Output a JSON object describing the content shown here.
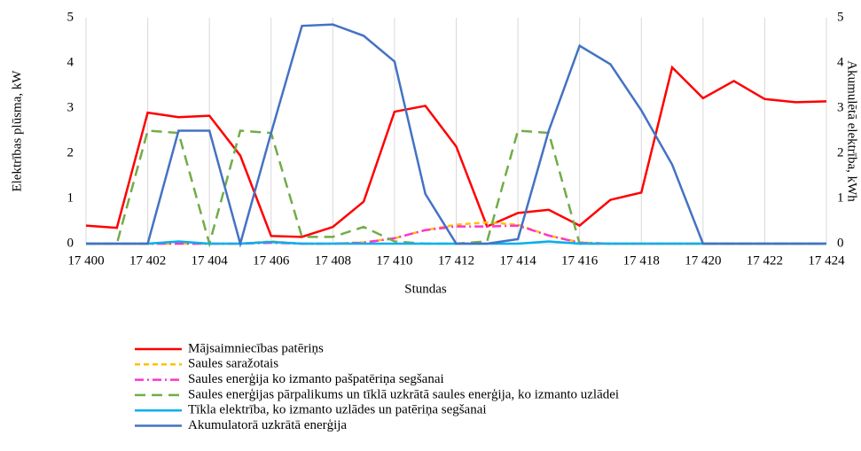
{
  "chart_data": {
    "type": "line",
    "x": [
      17400,
      17401,
      17402,
      17403,
      17404,
      17405,
      17406,
      17407,
      17408,
      17409,
      17410,
      17411,
      17412,
      17413,
      17414,
      17415,
      17416,
      17417,
      17418,
      17419,
      17420,
      17421,
      17422,
      17423,
      17424
    ],
    "series": [
      {
        "name": "Mājsaimniecības patēriņs",
        "color": "#ff0000",
        "dash": "solid",
        "values": [
          0.4,
          0.35,
          2.9,
          2.8,
          2.83,
          1.95,
          0.17,
          0.15,
          0.37,
          0.93,
          2.92,
          3.05,
          2.15,
          0.38,
          0.68,
          0.75,
          0.4,
          0.97,
          1.13,
          3.9,
          3.22,
          3.6,
          3.2,
          3.13,
          3.15
        ]
      },
      {
        "name": "Saules saražotais",
        "color": "#ffc000",
        "dash": "dashed",
        "values": [
          0,
          0,
          0,
          0,
          0,
          0,
          0.05,
          0,
          0,
          0.03,
          0.12,
          0.3,
          0.42,
          0.47,
          0.42,
          0.18,
          0.03,
          0,
          0,
          0,
          0,
          0,
          0,
          0,
          0
        ]
      },
      {
        "name": "Saules enerģija ko izmanto pašpatēriņa segšanai",
        "color": "#ff33cc",
        "dash": "dashdot",
        "values": [
          0,
          0,
          0,
          0,
          0,
          0,
          0.02,
          0,
          0,
          0.02,
          0.12,
          0.3,
          0.38,
          0.38,
          0.4,
          0.18,
          0.02,
          0,
          0,
          0,
          0,
          0,
          0,
          0,
          0
        ]
      },
      {
        "name": "Saules enerģijas pārpalikums un tīklā uzkrātā saules enerģija, ko izmanto uzlādei",
        "color": "#70ad47",
        "dash": "longdash",
        "values": [
          0,
          0,
          2.5,
          2.45,
          0,
          2.5,
          2.45,
          0.15,
          0.15,
          0.37,
          0.05,
          0,
          0,
          0.05,
          2.5,
          2.45,
          0,
          0,
          0,
          0,
          0,
          0,
          0,
          0,
          0
        ]
      },
      {
        "name": "Tīkla elektrība, ko izmanto uzlādes un patēriņa segšanai",
        "color": "#00b0f0",
        "dash": "solid",
        "values": [
          0,
          0,
          0,
          0.05,
          0,
          0,
          0.04,
          0,
          0,
          0,
          0,
          0,
          0,
          0,
          0,
          0.05,
          0,
          0,
          0,
          0,
          0,
          0,
          0,
          0,
          0
        ]
      },
      {
        "name": "Akumulatorā uzkrātā enerģija",
        "color": "#4472c4",
        "dash": "solid",
        "axis": "y2",
        "values": [
          0,
          0,
          0,
          2.5,
          2.5,
          0,
          2.45,
          4.82,
          4.85,
          4.6,
          4.03,
          1.1,
          0,
          0,
          0.1,
          2.5,
          4.38,
          3.97,
          2.95,
          1.75,
          0,
          0,
          0,
          0,
          0
        ]
      }
    ],
    "x_label": "Stundas",
    "y_label": "Elektrības plūsma, kW",
    "y2_label": "Akumulētā elektrība, kWh",
    "xlim": [
      17400,
      17424
    ],
    "xticks": [
      {
        "value": 17400,
        "label": "17 400"
      },
      {
        "value": 17402,
        "label": "17 402"
      },
      {
        "value": 17404,
        "label": "17 404"
      },
      {
        "value": 17406,
        "label": "17 406"
      },
      {
        "value": 17408,
        "label": "17 408"
      },
      {
        "value": 17410,
        "label": "17 410"
      },
      {
        "value": 17412,
        "label": "17 412"
      },
      {
        "value": 17414,
        "label": "17 414"
      },
      {
        "value": 17416,
        "label": "17 416"
      },
      {
        "value": 17418,
        "label": "17 418"
      },
      {
        "value": 17420,
        "label": "17 420"
      },
      {
        "value": 17422,
        "label": "17 422"
      },
      {
        "value": 17424,
        "label": "17 424"
      }
    ],
    "ylim": [
      0,
      5
    ],
    "yticks": [
      0,
      1,
      2,
      3,
      4,
      5
    ],
    "y2lim": [
      0,
      5
    ],
    "y2ticks": [
      0,
      1,
      2,
      3,
      4,
      5
    ],
    "grid": "x",
    "legend": "bottom"
  }
}
